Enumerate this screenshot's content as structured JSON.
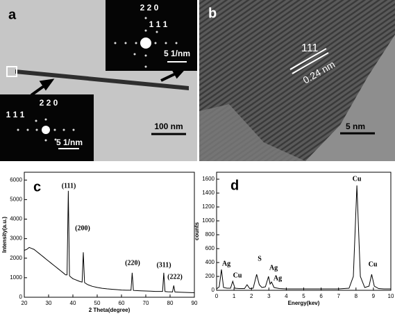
{
  "panel_a": {
    "label": "a",
    "top_inset": [
      "2 2 0",
      "1 1 1",
      "5 1/nm"
    ],
    "bottom_inset": [
      "2 2 0",
      "1 1 1",
      "5 1/nm"
    ],
    "scale_bar": "100 nm"
  },
  "panel_b": {
    "label": "b",
    "plane": "111",
    "spacing": "0.24 nm",
    "scale_bar": "5 nm"
  },
  "chart_data": [
    {
      "type": "line",
      "label": "c",
      "x_label": "2 Theta(degree)",
      "y_label": "Intensity(a.u.)",
      "color": "#000000",
      "x": [
        20,
        21,
        22,
        23,
        24,
        25,
        26,
        27,
        28,
        29,
        30,
        31,
        32,
        33,
        34,
        35,
        36,
        37,
        37.6,
        38.1,
        38.6,
        39,
        40,
        41,
        42,
        43,
        43.8,
        44.3,
        44.8,
        46,
        48,
        50,
        52,
        54,
        56,
        58,
        60,
        62,
        63.9,
        64.4,
        64.9,
        66,
        68,
        70,
        72,
        74,
        76,
        76.9,
        77.4,
        77.9,
        79,
        81,
        81.5,
        82,
        84,
        86,
        88,
        90
      ],
      "values": [
        2400,
        2450,
        2550,
        2500,
        2450,
        2350,
        2250,
        2150,
        2050,
        1950,
        1850,
        1750,
        1650,
        1550,
        1450,
        1350,
        1250,
        1150,
        1150,
        5450,
        1100,
        1050,
        950,
        900,
        850,
        800,
        780,
        2300,
        750,
        650,
        560,
        500,
        460,
        430,
        410,
        390,
        370,
        360,
        360,
        1250,
        350,
        340,
        330,
        320,
        310,
        300,
        300,
        300,
        1250,
        290,
        280,
        270,
        600,
        270,
        260,
        250,
        240,
        230
      ],
      "annotations": [
        "(111)",
        "(200)",
        "(220)",
        "(311)",
        "(222)"
      ],
      "xlim": [
        20,
        90
      ],
      "xticks": [
        20,
        30,
        40,
        50,
        60,
        70,
        80,
        90
      ],
      "ylim": [
        0,
        6400
      ],
      "yticks": [
        0,
        1000,
        2000,
        3000,
        4000,
        5000,
        6000
      ]
    },
    {
      "type": "line",
      "label": "d",
      "x_label": "Energy(kev)",
      "y_label": "counts",
      "color": "#000000",
      "x": [
        0,
        0.15,
        0.28,
        0.4,
        0.6,
        0.8,
        0.93,
        1.05,
        1.3,
        1.6,
        1.75,
        1.9,
        2.1,
        2.3,
        2.45,
        2.6,
        2.8,
        2.98,
        3.07,
        3.15,
        3.3,
        3.6,
        4,
        5,
        6,
        7,
        7.6,
        7.85,
        8.05,
        8.25,
        8.5,
        8.75,
        8.9,
        9.05,
        9.3,
        9.6,
        10
      ],
      "values": [
        20,
        50,
        300,
        40,
        30,
        30,
        130,
        30,
        25,
        25,
        80,
        25,
        30,
        230,
        80,
        40,
        50,
        200,
        90,
        120,
        40,
        25,
        20,
        20,
        20,
        20,
        30,
        200,
        1510,
        200,
        40,
        60,
        230,
        60,
        25,
        20,
        20
      ],
      "annotations": [
        "Ag",
        "Cu",
        "S",
        "Ag",
        "Ag",
        "Cu",
        "Cu"
      ],
      "xlim": [
        0,
        10
      ],
      "xticks": [
        0,
        1,
        2,
        3,
        4,
        5,
        6,
        7,
        8,
        9,
        10
      ],
      "ylim": [
        0,
        1700
      ],
      "yticks": [
        0,
        200,
        400,
        600,
        800,
        1000,
        1200,
        1400,
        1600
      ]
    }
  ]
}
